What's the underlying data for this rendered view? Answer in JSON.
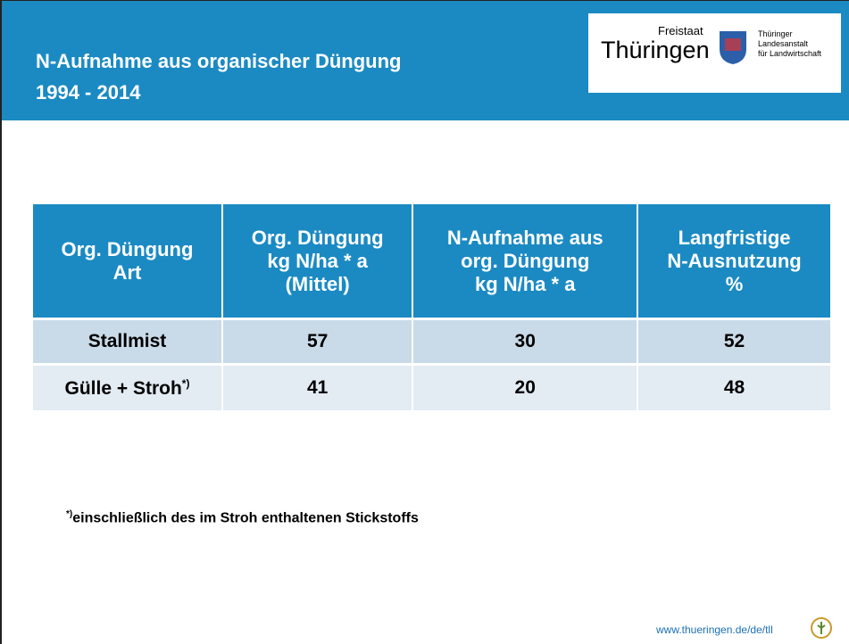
{
  "header": {
    "title_lines": [
      "N-Aufnahme aus organischer Düngung",
      "1994 - 2014"
    ],
    "logo": {
      "state_small": "Freistaat",
      "state": "Thüringen",
      "institute_lines": [
        "Thüringer",
        "Landesanstalt",
        "für Landwirtschaft"
      ]
    }
  },
  "table": {
    "columns": [
      [
        "Org. Düngung",
        "Art"
      ],
      [
        "Org. Düngung",
        "kg N/ha * a",
        "(Mittel)"
      ],
      [
        "N-Aufnahme aus",
        "org. Düngung",
        "kg N/ha * a"
      ],
      [
        "Langfristige",
        "N-Ausnutzung",
        "%"
      ]
    ],
    "rows": [
      [
        {
          "text": "Stallmist"
        },
        57,
        30,
        52
      ],
      [
        {
          "text": "Gülle + Stroh",
          "sup": "*)"
        },
        41,
        20,
        48
      ]
    ]
  },
  "footnote": {
    "mark": "*)",
    "text": "einschließlich des im Stroh enthaltenen Stickstoffs"
  },
  "footer": {
    "url": "www.thueringen.de/de/tll"
  }
}
